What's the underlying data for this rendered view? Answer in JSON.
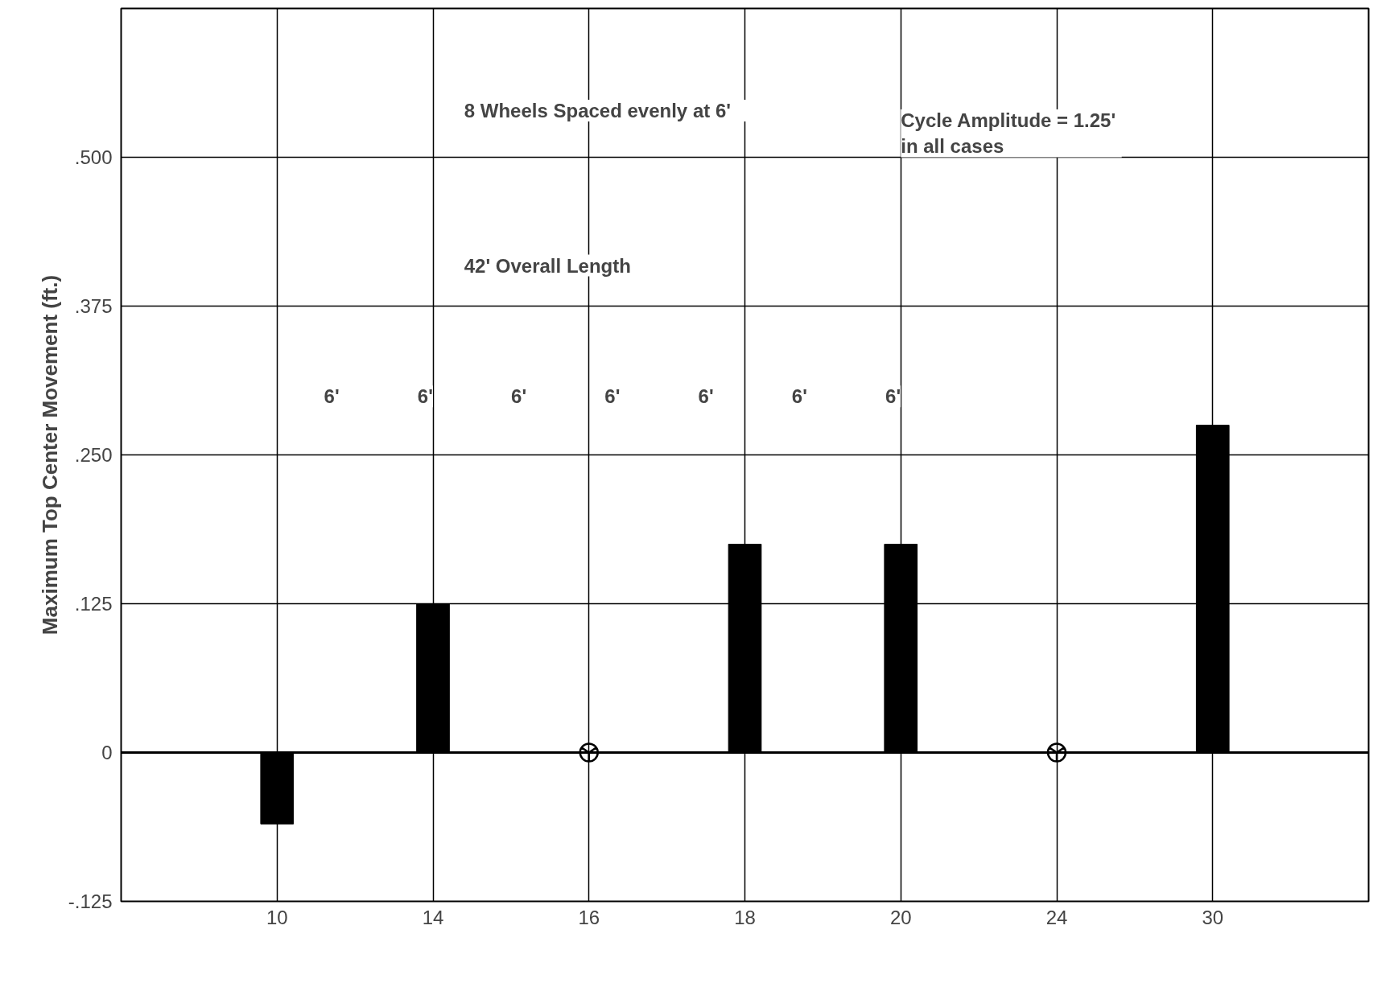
{
  "chart_data": {
    "type": "bar",
    "ylabel": "Maximum Top Center Movement (ft.)",
    "categories": [
      "10",
      "14",
      "16",
      "18",
      "20",
      "24",
      "30"
    ],
    "series": [
      {
        "color": "#000000",
        "values": [
          -0.06,
          0.125,
          0,
          0.175,
          0.175,
          0,
          0.275
        ]
      },
      {
        "type": "scatter",
        "color": "#000000",
        "x": [
          "16",
          "24"
        ],
        "values": [
          0,
          0
        ],
        "marker": "circle"
      }
    ],
    "ylim": [
      -0.125,
      0.625
    ],
    "yticks": [
      {
        "value": -0.125,
        "label": "-.125"
      },
      {
        "value": 0,
        "label": "0"
      },
      {
        "value": 0.125,
        "label": ".125"
      },
      {
        "value": 0.25,
        "label": ".250"
      },
      {
        "value": 0.375,
        "label": ".375"
      },
      {
        "value": 0.5,
        "label": ".500"
      }
    ],
    "grid": true,
    "annotations": [
      "8 Wheels  Spaced  evenly  at 6'",
      "Cycle  Amplitude = 1.25'\nin  all  cases",
      "42' Overall  Length",
      "6'",
      "6'",
      "6'",
      "6'",
      "6'",
      "6'",
      "6'"
    ]
  }
}
